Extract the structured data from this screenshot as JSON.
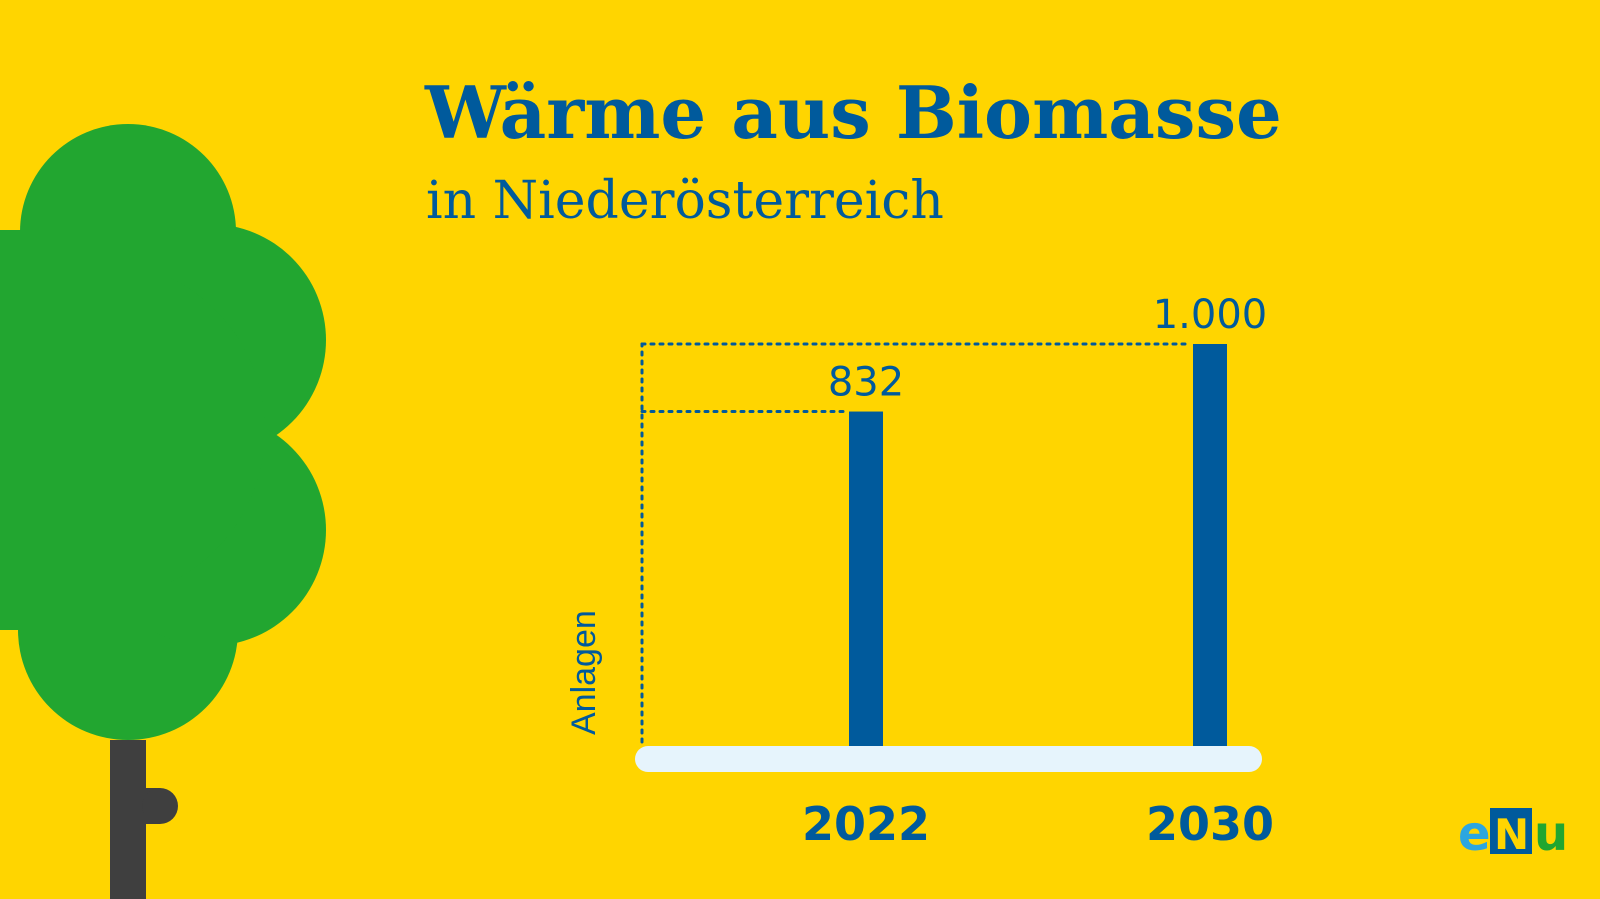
{
  "header": {
    "title": "Wärme aus Biomasse",
    "subtitle": "in Niederösterreich"
  },
  "colors": {
    "background": "#FFD500",
    "accent_blue": "#005A9C",
    "tree_green": "#22A630",
    "trunk": "#3F3F3F",
    "baseline": "#E6F4FC"
  },
  "chart_data": {
    "type": "bar",
    "categories": [
      "2022",
      "2030"
    ],
    "values": [
      832,
      1000
    ],
    "value_labels": [
      "832",
      "1.000"
    ],
    "ylabel": "Anlagen",
    "ylim": [
      0,
      1000
    ],
    "grid": false,
    "guide_lines": "dotted"
  },
  "logo": {
    "text_e": "e",
    "text_n": "N",
    "text_u": "u"
  }
}
